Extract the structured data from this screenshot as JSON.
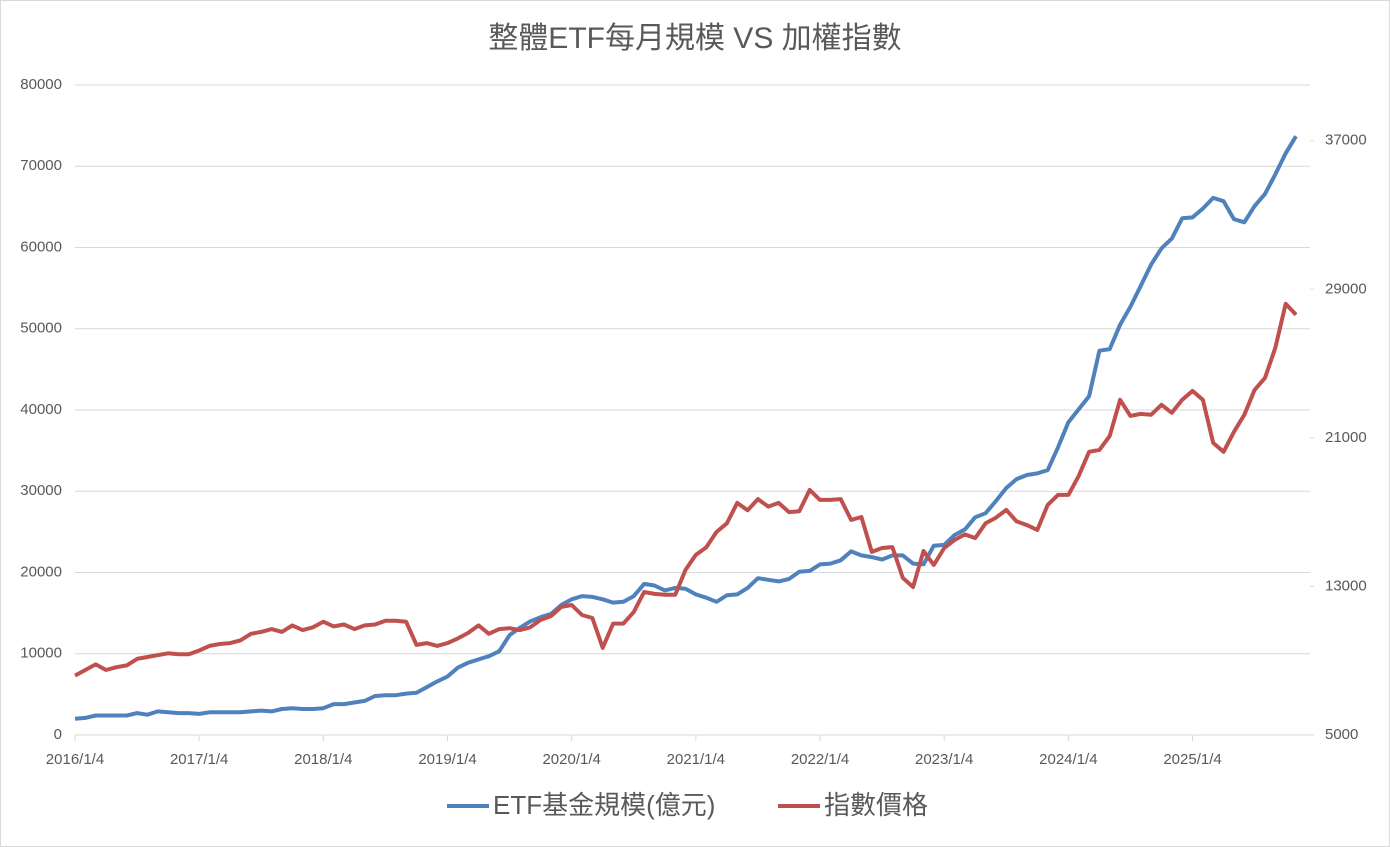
{
  "chart_data": {
    "type": "line",
    "title": "整體ETF每月規模 VS 加權指數",
    "categories": [
      "2016/1/4",
      null,
      null,
      null,
      null,
      null,
      null,
      null,
      null,
      null,
      null,
      null,
      "2017/1/4",
      null,
      null,
      null,
      null,
      null,
      null,
      null,
      null,
      null,
      null,
      null,
      "2018/1/4",
      null,
      null,
      null,
      null,
      null,
      null,
      null,
      null,
      null,
      null,
      null,
      "2019/1/4",
      null,
      null,
      null,
      null,
      null,
      null,
      null,
      null,
      null,
      null,
      null,
      "2020/1/4",
      null,
      null,
      null,
      null,
      null,
      null,
      null,
      null,
      null,
      null,
      null,
      "2021/1/4",
      null,
      null,
      null,
      null,
      null,
      null,
      null,
      null,
      null,
      null,
      null,
      "2022/1/4",
      null,
      null,
      null,
      null,
      null,
      null,
      null,
      null,
      null,
      null,
      null,
      "2023/1/4",
      null,
      null,
      null,
      null,
      null,
      null,
      null,
      null,
      null,
      null,
      null,
      "2024/1/4",
      null,
      null,
      null,
      null,
      null,
      null,
      null,
      null,
      null,
      null,
      null,
      "2025/1/4",
      null,
      null,
      null,
      null,
      null,
      null,
      null,
      null,
      null,
      null
    ],
    "series": [
      {
        "name": "ETF基金規模(億元)",
        "color": "#4f81bd",
        "values": [
          2000,
          2100,
          2400,
          2400,
          2400,
          2400,
          2700,
          2500,
          2900,
          2800,
          2700,
          2700,
          2600,
          2800,
          2800,
          2800,
          2800,
          2900,
          3000,
          2900,
          3200,
          3300,
          3200,
          3200,
          3300,
          3800,
          3800,
          4000,
          4200,
          4800,
          4900,
          4900,
          5100,
          5200,
          5900,
          6600,
          7200,
          8300,
          8900,
          9300,
          9700,
          10300,
          12300,
          13200,
          14000,
          14500,
          14900,
          16000,
          16700,
          17100,
          17000,
          16700,
          16300,
          16400,
          17100,
          18600,
          18400,
          17800,
          18100,
          18000,
          17300,
          16900,
          16400,
          17200,
          17300,
          18100,
          19300,
          19100,
          18900,
          19200,
          20100,
          20200,
          21000,
          21100,
          21500,
          22600,
          22100,
          21900,
          21600,
          22100,
          22100,
          21100,
          21000,
          23300,
          23400,
          24600,
          25300,
          26800,
          27300,
          28800,
          30400,
          31500,
          32000,
          32200,
          32600,
          35400,
          38500,
          40100,
          41700,
          47300,
          47500,
          50500,
          52700,
          55300,
          57900,
          59900,
          61100,
          63600,
          63700,
          64800,
          66100,
          65700,
          63500,
          63100,
          65100,
          66600,
          69000,
          71600,
          73700
        ]
      },
      {
        "name": "指數價格",
        "color": "#c0504d",
        "axis": "y2",
        "values": [
          8200,
          8500,
          8800,
          8500,
          8650,
          8750,
          9100,
          9200,
          9300,
          9400,
          9350,
          9350,
          9550,
          9800,
          9900,
          9950,
          10100,
          10450,
          10550,
          10700,
          10550,
          10900,
          10650,
          10800,
          11100,
          10850,
          10950,
          10700,
          10900,
          10950,
          11150,
          11150,
          11100,
          9850,
          9950,
          9800,
          9950,
          10200,
          10500,
          10900,
          10450,
          10700,
          10750,
          10650,
          10800,
          11200,
          11400,
          11900,
          12000,
          11460,
          11300,
          9690,
          11000,
          11000,
          11630,
          12700,
          12600,
          12550,
          12550,
          13890,
          14700,
          15100,
          15930,
          16400,
          17500,
          17100,
          17700,
          17300,
          17500,
          17000,
          17050,
          18200,
          17660,
          17660,
          17700,
          16580,
          16740,
          14860,
          15070,
          15120,
          13460,
          12970,
          14910,
          14160,
          15070,
          15500,
          15800,
          15600,
          16400,
          16700,
          17120,
          16500,
          16300,
          16040,
          17390,
          17930,
          17930,
          18950,
          20250,
          20350,
          21100,
          23050,
          22180,
          22290,
          22240,
          22780,
          22350,
          23050,
          23530,
          23050,
          20730,
          20250,
          21320,
          22240,
          23580,
          24230,
          25850,
          28220,
          27630
        ]
      }
    ],
    "ylim": [
      0,
      80000
    ],
    "yticks": [
      0,
      10000,
      20000,
      30000,
      40000,
      50000,
      60000,
      70000,
      80000
    ],
    "y2lim": [
      5000,
      40000
    ],
    "y2ticks": [
      5000,
      13000,
      21000,
      29000,
      37000
    ],
    "grid": true,
    "legend": "bottom"
  }
}
